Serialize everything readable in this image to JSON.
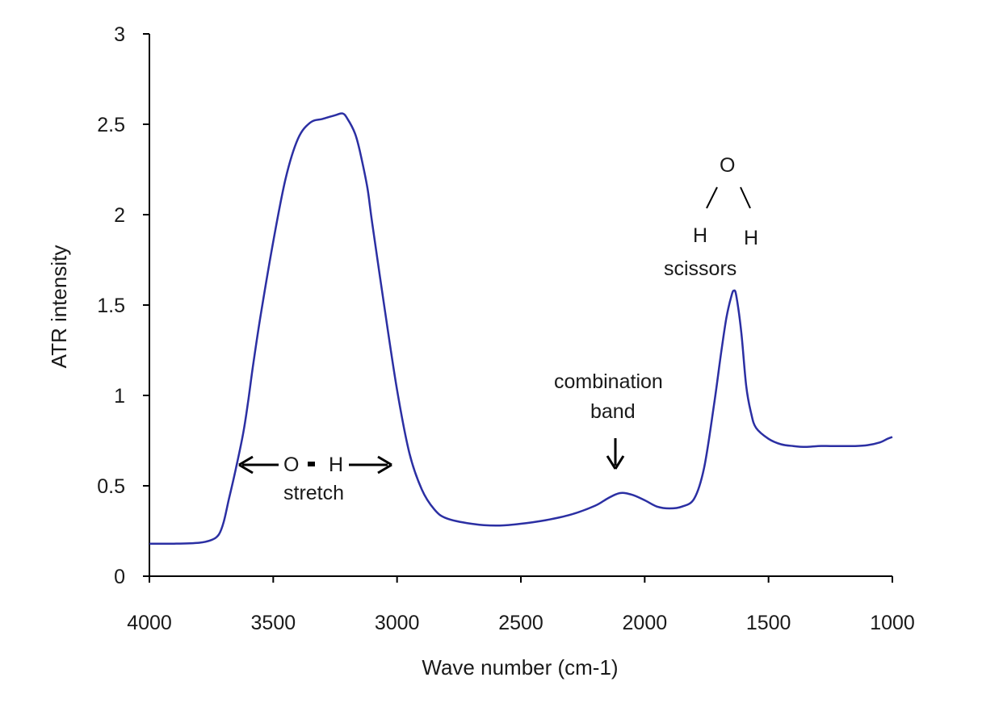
{
  "chart_data": {
    "type": "line",
    "title": "",
    "xlabel": "Wave number (cm-1)",
    "ylabel": "ATR intensity",
    "xlim": [
      4000,
      1000
    ],
    "ylim": [
      0,
      3
    ],
    "x_reversed": true,
    "grid": false,
    "legend": "none",
    "x_ticks": [
      4000,
      3500,
      3000,
      2500,
      2000,
      1500,
      1000
    ],
    "x_tick_labels": [
      "4000",
      "3500",
      "3000",
      "2500",
      "2000",
      "1500",
      "1000"
    ],
    "y_ticks": [
      0,
      0.5,
      1,
      1.5,
      2,
      2.5,
      3
    ],
    "y_tick_labels": [
      "0",
      "0.5",
      "1",
      "1.5",
      "2",
      "2.5",
      "3"
    ],
    "series": [
      {
        "color": "#2b2fa3",
        "points": [
          [
            4000,
            0.18
          ],
          [
            3900,
            0.18
          ],
          [
            3800,
            0.185
          ],
          [
            3750,
            0.2
          ],
          [
            3720,
            0.23
          ],
          [
            3700,
            0.3
          ],
          [
            3680,
            0.42
          ],
          [
            3650,
            0.6
          ],
          [
            3620,
            0.8
          ],
          [
            3600,
            0.98
          ],
          [
            3580,
            1.18
          ],
          [
            3550,
            1.45
          ],
          [
            3500,
            1.85
          ],
          [
            3450,
            2.2
          ],
          [
            3400,
            2.42
          ],
          [
            3350,
            2.51
          ],
          [
            3300,
            2.53
          ],
          [
            3250,
            2.55
          ],
          [
            3220,
            2.56
          ],
          [
            3200,
            2.53
          ],
          [
            3170,
            2.45
          ],
          [
            3150,
            2.35
          ],
          [
            3120,
            2.15
          ],
          [
            3100,
            1.95
          ],
          [
            3050,
            1.48
          ],
          [
            3000,
            1.03
          ],
          [
            2950,
            0.68
          ],
          [
            2900,
            0.48
          ],
          [
            2850,
            0.37
          ],
          [
            2800,
            0.32
          ],
          [
            2700,
            0.29
          ],
          [
            2600,
            0.28
          ],
          [
            2500,
            0.29
          ],
          [
            2400,
            0.31
          ],
          [
            2300,
            0.34
          ],
          [
            2200,
            0.39
          ],
          [
            2150,
            0.43
          ],
          [
            2100,
            0.46
          ],
          [
            2050,
            0.45
          ],
          [
            2000,
            0.42
          ],
          [
            1950,
            0.385
          ],
          [
            1900,
            0.375
          ],
          [
            1850,
            0.385
          ],
          [
            1800,
            0.43
          ],
          [
            1760,
            0.6
          ],
          [
            1720,
            0.95
          ],
          [
            1690,
            1.25
          ],
          [
            1670,
            1.43
          ],
          [
            1650,
            1.55
          ],
          [
            1640,
            1.58
          ],
          [
            1630,
            1.55
          ],
          [
            1610,
            1.35
          ],
          [
            1590,
            1.05
          ],
          [
            1570,
            0.9
          ],
          [
            1550,
            0.82
          ],
          [
            1500,
            0.76
          ],
          [
            1450,
            0.73
          ],
          [
            1400,
            0.72
          ],
          [
            1350,
            0.715
          ],
          [
            1300,
            0.72
          ],
          [
            1250,
            0.72
          ],
          [
            1200,
            0.72
          ],
          [
            1150,
            0.72
          ],
          [
            1100,
            0.725
          ],
          [
            1050,
            0.74
          ],
          [
            1020,
            0.76
          ],
          [
            1000,
            0.77
          ]
        ]
      }
    ],
    "annotations": {
      "oh_left": "O",
      "oh_right": "H",
      "oh_stretch": "stretch",
      "combination_line1": "combination",
      "combination_line2": "band",
      "water_o": "O",
      "water_h_left": "H",
      "water_h_right": "H",
      "scissors": "scissors"
    }
  }
}
